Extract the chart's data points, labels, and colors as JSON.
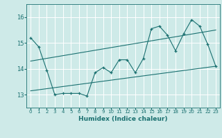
{
  "xlabel": "Humidex (Indice chaleur)",
  "bg_color": "#ceeae8",
  "grid_color": "#ffffff",
  "line_color": "#1a7070",
  "xlim": [
    -0.5,
    23.5
  ],
  "ylim": [
    12.5,
    16.5
  ],
  "yticks": [
    13,
    14,
    15,
    16
  ],
  "xticks": [
    0,
    1,
    2,
    3,
    4,
    5,
    6,
    7,
    8,
    9,
    10,
    11,
    12,
    13,
    14,
    15,
    16,
    17,
    18,
    19,
    20,
    21,
    22,
    23
  ],
  "line1_x": [
    0,
    1,
    2,
    3,
    4,
    5,
    6,
    7,
    8,
    9,
    10,
    11,
    12,
    13,
    14,
    15,
    16,
    17,
    18,
    19,
    20,
    21,
    22,
    23
  ],
  "line1_y": [
    15.2,
    14.85,
    13.95,
    13.0,
    13.05,
    13.05,
    13.05,
    12.95,
    13.85,
    14.05,
    13.85,
    14.35,
    14.35,
    13.85,
    14.4,
    15.55,
    15.65,
    15.3,
    14.7,
    15.35,
    15.9,
    15.65,
    14.95,
    14.1
  ],
  "line3_x": [
    0,
    23
  ],
  "line3_y": [
    13.15,
    14.1
  ],
  "line4_x": [
    0,
    23
  ],
  "line4_y": [
    14.3,
    15.5
  ]
}
